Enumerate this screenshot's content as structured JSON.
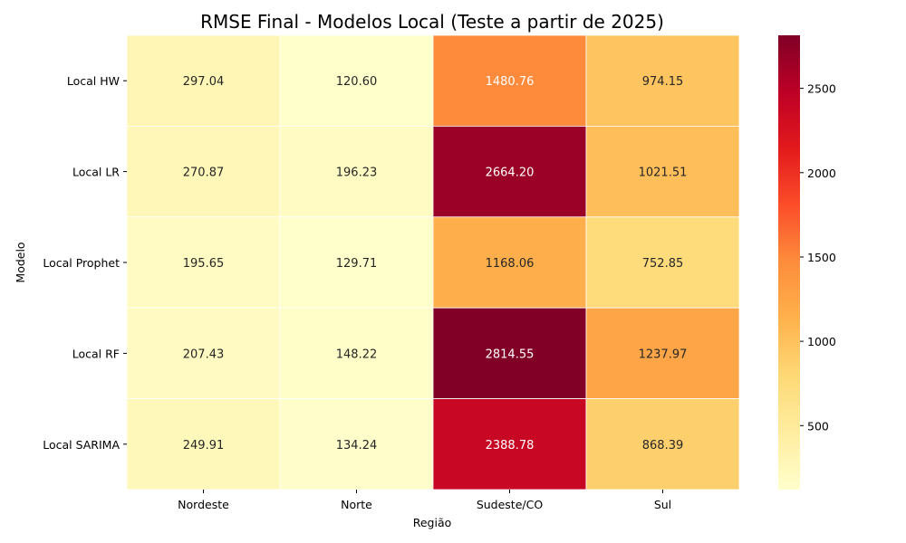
{
  "chart_data": {
    "type": "heatmap",
    "title": "RMSE Final - Modelos Local (Teste a partir de 2025)",
    "xlabel": "Região",
    "ylabel": "Modelo",
    "x_categories": [
      "Nordeste",
      "Norte",
      "Sudeste/CO",
      "Sul"
    ],
    "y_categories": [
      "Local HW",
      "Local LR",
      "Local Prophet",
      "Local RF",
      "Local SARIMA"
    ],
    "values": [
      [
        297.04,
        120.6,
        1480.76,
        974.15
      ],
      [
        270.87,
        196.23,
        2664.2,
        1021.51
      ],
      [
        195.65,
        129.71,
        1168.06,
        752.85
      ],
      [
        207.43,
        148.22,
        2814.55,
        1237.97
      ],
      [
        249.91,
        134.24,
        2388.78,
        868.39
      ]
    ],
    "value_labels": [
      [
        "297.04",
        "120.60",
        "1480.76",
        "974.15"
      ],
      [
        "270.87",
        "196.23",
        "2664.20",
        "1021.51"
      ],
      [
        "195.65",
        "129.71",
        "1168.06",
        "752.85"
      ],
      [
        "207.43",
        "148.22",
        "2814.55",
        "1237.97"
      ],
      [
        "249.91",
        "134.24",
        "2388.78",
        "868.39"
      ]
    ],
    "colormap": "YlOrRd",
    "colorbar": {
      "range": [
        120.6,
        2814.55
      ],
      "ticks": [
        500,
        1000,
        1500,
        2000,
        2500
      ],
      "tick_labels": [
        "500",
        "1000",
        "1500",
        "2000",
        "2500"
      ]
    },
    "grid": false,
    "legend": "colorbar-right"
  }
}
